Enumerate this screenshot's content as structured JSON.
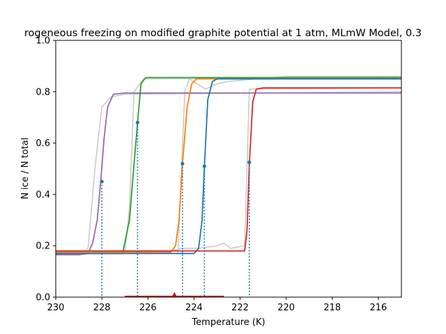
{
  "chart_data": {
    "type": "line",
    "title": "rogeneous freezing on modified graphite potential at 1 atm, MLmW Model, 0.3",
    "xlabel": "Temperature (K)",
    "ylabel": "N ice / N total",
    "xlim": [
      230,
      215
    ],
    "ylim": [
      0,
      1.0
    ],
    "x_ticks": [
      "230",
      "228",
      "226",
      "224",
      "222",
      "220",
      "218",
      "216"
    ],
    "y_ticks": [
      "0.0",
      "0.2",
      "0.4",
      "0.6",
      "0.8",
      "1.0"
    ],
    "grid": false,
    "legend": "none",
    "colors": {
      "blue": "#1f77b4",
      "orange": "#ff7f0e",
      "green": "#2ca02c",
      "red": "#d62728",
      "purple": "#9467bd",
      "gray": "#c8c8c8",
      "marker": "#1f77b4"
    },
    "background_series": [
      {
        "color": "gray",
        "points": [
          [
            230,
            0.175
          ],
          [
            228.8,
            0.175
          ],
          [
            228.6,
            0.19
          ],
          [
            228.3,
            0.5
          ],
          [
            228.0,
            0.74
          ],
          [
            227.6,
            0.78
          ],
          [
            227.0,
            0.79
          ],
          [
            215,
            0.8
          ]
        ]
      },
      {
        "color": "gray",
        "points": [
          [
            230,
            0.17
          ],
          [
            227.0,
            0.17
          ],
          [
            226.8,
            0.35
          ],
          [
            226.6,
            0.8
          ],
          [
            226.2,
            0.85
          ],
          [
            215,
            0.855
          ]
        ]
      },
      {
        "color": "gray",
        "points": [
          [
            230,
            0.17
          ],
          [
            226.5,
            0.17
          ],
          [
            225,
            0.18
          ],
          [
            224.5,
            0.19
          ],
          [
            223.8,
            0.19
          ],
          [
            223.0,
            0.2
          ],
          [
            222.7,
            0.21
          ],
          [
            222.4,
            0.19
          ],
          [
            221.8,
            0.2
          ],
          [
            221.6,
            0.81
          ],
          [
            215,
            0.815
          ]
        ]
      },
      {
        "color": "gray",
        "points": [
          [
            230,
            0.17
          ],
          [
            224.7,
            0.17
          ],
          [
            224.4,
            0.8
          ],
          [
            224.2,
            0.85
          ],
          [
            223.5,
            0.81
          ],
          [
            223.0,
            0.83
          ],
          [
            222.5,
            0.84
          ],
          [
            220,
            0.86
          ],
          [
            215,
            0.86
          ]
        ]
      }
    ],
    "series": [
      {
        "color": "purple",
        "points": [
          [
            230,
            0.165
          ],
          [
            229,
            0.165
          ],
          [
            228.6,
            0.17
          ],
          [
            228.4,
            0.21
          ],
          [
            228.2,
            0.3
          ],
          [
            228.05,
            0.45
          ],
          [
            227.9,
            0.62
          ],
          [
            227.75,
            0.74
          ],
          [
            227.5,
            0.79
          ],
          [
            227.0,
            0.795
          ],
          [
            215,
            0.795
          ]
        ]
      },
      {
        "color": "green",
        "points": [
          [
            230,
            0.17
          ],
          [
            227.1,
            0.17
          ],
          [
            226.8,
            0.3
          ],
          [
            226.6,
            0.52
          ],
          [
            226.45,
            0.68
          ],
          [
            226.3,
            0.83
          ],
          [
            226.1,
            0.855
          ],
          [
            215,
            0.855
          ]
        ]
      },
      {
        "color": "orange",
        "points": [
          [
            230,
            0.175
          ],
          [
            225.0,
            0.175
          ],
          [
            224.8,
            0.2
          ],
          [
            224.65,
            0.3
          ],
          [
            224.5,
            0.52
          ],
          [
            224.3,
            0.74
          ],
          [
            224.1,
            0.83
          ],
          [
            223.9,
            0.85
          ],
          [
            215,
            0.85
          ]
        ]
      },
      {
        "color": "blue",
        "points": [
          [
            230,
            0.17
          ],
          [
            224.0,
            0.17
          ],
          [
            223.8,
            0.19
          ],
          [
            223.65,
            0.3
          ],
          [
            223.55,
            0.51
          ],
          [
            223.4,
            0.77
          ],
          [
            223.2,
            0.84
          ],
          [
            223.0,
            0.85
          ],
          [
            215,
            0.85
          ]
        ]
      },
      {
        "color": "red",
        "points": [
          [
            230,
            0.18
          ],
          [
            221.8,
            0.18
          ],
          [
            221.7,
            0.26
          ],
          [
            221.6,
            0.52
          ],
          [
            221.45,
            0.76
          ],
          [
            221.3,
            0.81
          ],
          [
            221.0,
            0.815
          ],
          [
            215,
            0.815
          ]
        ]
      }
    ],
    "freezing_markers": [
      {
        "x": 228.0,
        "y": 0.45
      },
      {
        "x": 226.45,
        "y": 0.68
      },
      {
        "x": 224.5,
        "y": 0.52
      },
      {
        "x": 223.55,
        "y": 0.51
      },
      {
        "x": 221.6,
        "y": 0.525
      }
    ],
    "range_bar": {
      "x_start": 227.0,
      "x_end": 222.7,
      "y": 0.0,
      "mean_x": 224.85,
      "color": "#dd0000"
    }
  }
}
